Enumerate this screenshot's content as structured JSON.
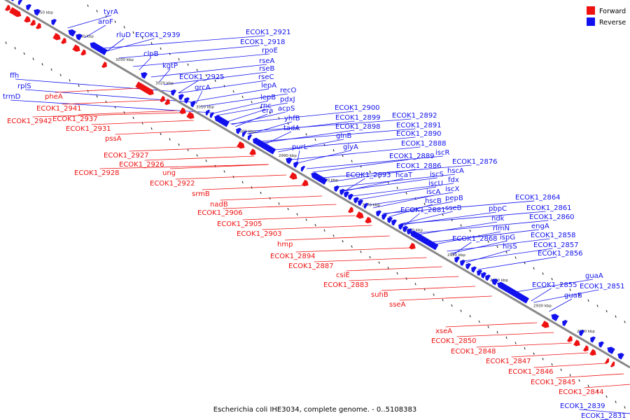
{
  "title": "Escherichia coli IHE3034, complete genome. - 0..5108383",
  "legend": {
    "forward": {
      "label": "Forward",
      "color": "#ee1111"
    },
    "reverse": {
      "label": "Reverse",
      "color": "#1111ee"
    }
  },
  "colors": {
    "axis": "#888888",
    "forward": "#ee1111",
    "reverse": "#1111ee",
    "tick": "#111111"
  },
  "kbp_ticks": [
    "3050 kbp",
    "3040 kbp",
    "3030 kbp",
    "3020 kbp",
    "3010 kbp",
    "3000 kbp",
    "2990 kbp",
    "2980 kbp",
    "2970 kbp",
    "2960 kbp",
    "2950 kbp",
    "2940 kbp",
    "2930 kbp",
    "2920 kbp"
  ],
  "reverse_genes": [
    "tyrA",
    "aroF",
    "rluD",
    "ECOK1_2939",
    "clpB",
    "ffh",
    "rplS",
    "trmD",
    "kgtP",
    "ECOK1_2925",
    "grcA",
    "ECOK1_2921",
    "ECOK1_2918",
    "rpoE",
    "rseA",
    "rseB",
    "rseC",
    "lepA",
    "lepB",
    "rnc",
    "era",
    "recO",
    "pdxJ",
    "acpS",
    "yhfB",
    "tadA",
    "purL",
    "ECOK1_2900",
    "ECOK1_2899",
    "ECOK1_2898",
    "glnB",
    "glyA",
    "ECOK1_2893",
    "hcaT",
    "ECOK1_2892",
    "ECOK1_2891",
    "ECOK1_2890",
    "ECOK1_2888",
    "ECOK1_2889",
    "iscR",
    "ECOK1_2886",
    "ECOK1_2876",
    "iscS",
    "hscA",
    "iscU",
    "fdx",
    "iscA",
    "iscX",
    "hscB",
    "pepB",
    "ECOK1_2881",
    "sseB",
    "pbpC",
    "ndk",
    "rlmN",
    "ECOK1_2868",
    "ispG",
    "hisS",
    "ECOK1_2864",
    "ECOK1_2861",
    "ECOK1_2860",
    "engA",
    "ECOK1_2858",
    "ECOK1_2857",
    "ECOK1_2856",
    "ECOK1_2855",
    "guaB",
    "guaA",
    "ECOK1_2851",
    "ECOK1_2839",
    "ECOK1_2831"
  ],
  "forward_genes": [
    "pheA",
    "ECOK1_2941",
    "ECOK1_2937",
    "ECOK1_2942",
    "ECOK1_2931",
    "pssA",
    "ECOK1_2927",
    "ECOK1_2926",
    "ECOK1_2928",
    "ung",
    "ECOK1_2922",
    "srmB",
    "nadB",
    "ECOK1_2906",
    "ECOK1_2905",
    "ECOK1_2903",
    "hmp",
    "ECOK1_2894",
    "ECOK1_2887",
    "csiE",
    "ECOK1_2883",
    "suhB",
    "sseA",
    "xseA",
    "ECOK1_2850",
    "ECOK1_2848",
    "ECOK1_2847",
    "ECOK1_2846",
    "ECOK1_2845",
    "ECOK1_2844"
  ]
}
